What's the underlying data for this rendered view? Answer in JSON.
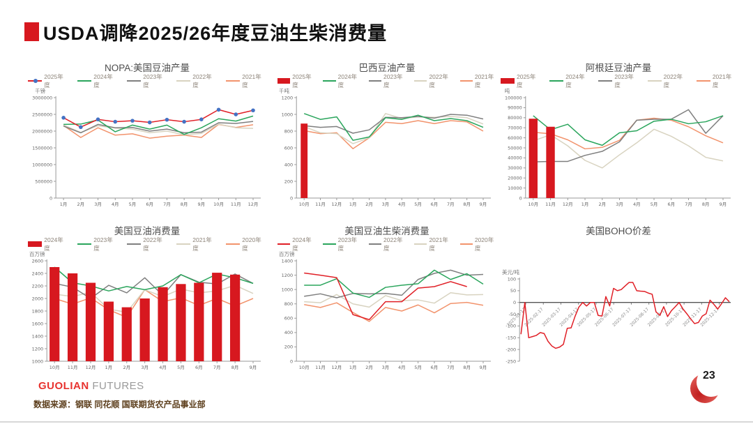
{
  "header": {
    "title": "USDA调降2025/26年度豆油生柴消费量",
    "accent_color": "#d7181f"
  },
  "footer": {
    "logo_primary": "GUOLIAN",
    "logo_secondary": "FUTURES",
    "source_note": "数据来源：钢联 同花顺 国联期货农产品事业部",
    "page_number": "23"
  },
  "palette": {
    "bar_red": "#d7181f",
    "line_red": "#e01f26",
    "green": "#2aa55c",
    "dark_gray": "#7f7f7f",
    "beige": "#d8d3c0",
    "orange": "#f2936c",
    "blue_marker": "#4472c4"
  },
  "chart_data": [
    {
      "id": "nopa-us-soybean-oil-production",
      "type": "line",
      "title": "NOPA:美国豆油产量",
      "unit": "千镑",
      "categories": [
        "1月",
        "2月",
        "3月",
        "4月",
        "5月",
        "6月",
        "7月",
        "8月",
        "9月",
        "10月",
        "11月",
        "12月"
      ],
      "ylim": [
        0,
        3000000
      ],
      "yticks": [
        0,
        500000,
        1000000,
        1500000,
        2000000,
        2500000,
        3000000
      ],
      "legend_position": "top",
      "grid": false,
      "series": [
        {
          "name": "2025年度",
          "style": "line",
          "color": "#e01f26",
          "marker": "circle",
          "marker_color": "#4472c4",
          "values": [
            2400000,
            2120000,
            2350000,
            2280000,
            2310000,
            2260000,
            2340000,
            2280000,
            2350000,
            2640000,
            2500000,
            2620000
          ]
        },
        {
          "name": "2024年度",
          "style": "line",
          "color": "#2aa55c",
          "values": [
            2200000,
            2210000,
            2330000,
            1980000,
            2180000,
            2060000,
            2180000,
            1900000,
            2100000,
            2370000,
            2300000,
            2450000
          ]
        },
        {
          "name": "2023年度",
          "style": "line",
          "color": "#7f7f7f",
          "values": [
            2150000,
            1950000,
            2200000,
            2100000,
            2110000,
            2000000,
            2060000,
            1950000,
            1970000,
            2250000,
            2230000,
            2290000
          ]
        },
        {
          "name": "2022年度",
          "style": "line",
          "color": "#d8d3c0",
          "values": [
            2180000,
            1960000,
            2160000,
            2090000,
            2060000,
            1950000,
            2000000,
            1890000,
            1930000,
            2210000,
            2100000,
            2080000
          ]
        },
        {
          "name": "2021年度",
          "style": "line",
          "color": "#f2936c",
          "values": [
            2170000,
            1810000,
            2100000,
            1880000,
            1920000,
            1790000,
            1850000,
            1880000,
            1810000,
            2200000,
            2110000,
            2190000
          ]
        }
      ]
    },
    {
      "id": "brazil-soybean-oil-production",
      "type": "bar",
      "title": "巴西豆油产量",
      "unit": "千吨",
      "categories": [
        "10月",
        "11月",
        "12月",
        "1月",
        "2月",
        "3月",
        "4月",
        "5月",
        "6月",
        "7月",
        "8月",
        "9月"
      ],
      "ylim": [
        0,
        1200
      ],
      "yticks": [
        0,
        200,
        400,
        600,
        800,
        1000,
        1200
      ],
      "bar_frac": 0.42,
      "legend_position": "top",
      "grid": false,
      "series": [
        {
          "name": "2025年度",
          "style": "bar",
          "color": "#d7181f",
          "values": [
            890
          ]
        },
        {
          "name": "2024年度",
          "style": "line",
          "color": "#2aa55c",
          "values": [
            1010,
            940,
            970,
            690,
            730,
            960,
            940,
            990,
            925,
            950,
            925,
            845
          ]
        },
        {
          "name": "2023年度",
          "style": "line",
          "color": "#7f7f7f",
          "values": [
            865,
            845,
            855,
            775,
            815,
            965,
            960,
            975,
            955,
            1000,
            990,
            945
          ]
        },
        {
          "name": "2022年度",
          "style": "line",
          "color": "#d8d3c0",
          "values": [
            855,
            780,
            770,
            650,
            720,
            1010,
            950,
            970,
            965,
            975,
            960,
            885
          ]
        },
        {
          "name": "2021年度",
          "style": "line",
          "color": "#f2936c",
          "values": [
            805,
            770,
            780,
            590,
            720,
            905,
            890,
            925,
            890,
            925,
            910,
            800
          ]
        }
      ]
    },
    {
      "id": "argentina-soybean-oil-production",
      "type": "bar",
      "title": "阿根廷豆油产量",
      "unit": "吨",
      "categories": [
        "10月",
        "11月",
        "12月",
        "1月",
        "2月",
        "3月",
        "4月",
        "5月",
        "6月",
        "7月",
        "8月",
        "9月"
      ],
      "ylim": [
        0,
        100000
      ],
      "yticks": [
        0,
        10000,
        20000,
        30000,
        40000,
        50000,
        60000,
        70000,
        80000,
        90000,
        100000
      ],
      "bar_frac": 0.5,
      "legend_position": "top",
      "grid": false,
      "series": [
        {
          "name": "2025年度",
          "style": "bar",
          "color": "#d7181f",
          "values": [
            79000,
            71000
          ]
        },
        {
          "name": "2024年度",
          "style": "line",
          "color": "#2aa55c",
          "values": [
            82000,
            68000,
            73500,
            58000,
            52500,
            65000,
            67000,
            76500,
            78500,
            74000,
            76000,
            82000
          ]
        },
        {
          "name": "2023年度",
          "style": "line",
          "color": "#7f7f7f",
          "values": [
            36000,
            36500,
            36500,
            42500,
            46500,
            56000,
            77500,
            78500,
            78500,
            88000,
            64500,
            82000
          ]
        },
        {
          "name": "2022年度",
          "style": "line",
          "color": "#d8d3c0",
          "values": [
            57000,
            63000,
            52000,
            37500,
            30000,
            43000,
            55000,
            68500,
            61500,
            52000,
            40500,
            37000
          ]
        },
        {
          "name": "2021年度",
          "style": "line",
          "color": "#f2936c",
          "values": [
            65500,
            64000,
            58000,
            49000,
            50500,
            57500,
            77500,
            79500,
            77500,
            71000,
            62000,
            55000
          ]
        }
      ]
    },
    {
      "id": "us-soybean-oil-consumption",
      "type": "bar",
      "title": "美国豆油消费量",
      "unit": "百万镑",
      "categories": [
        "10月",
        "11月",
        "12月",
        "1月",
        "2月",
        "3月",
        "4月",
        "5月",
        "6月",
        "7月",
        "8月",
        "9月"
      ],
      "ylim": [
        1000,
        2600
      ],
      "yticks": [
        1000,
        1200,
        1400,
        1600,
        1800,
        2000,
        2200,
        2400,
        2600
      ],
      "bar_frac": 0.55,
      "legend_position": "top",
      "grid": false,
      "series": [
        {
          "name": "2024年度",
          "style": "bar",
          "color": "#d7181f",
          "values": [
            2500,
            2400,
            2250,
            1950,
            1860,
            2000,
            2180,
            2230,
            2250,
            2410,
            2380
          ]
        },
        {
          "name": "2023年度",
          "style": "line",
          "color": "#2aa55c",
          "values": [
            2500,
            2250,
            2200,
            2120,
            2190,
            2140,
            2200,
            2380,
            2250,
            2390,
            2330,
            2240
          ]
        },
        {
          "name": "2022年度",
          "style": "line",
          "color": "#7f7f7f",
          "values": [
            2240,
            2180,
            2000,
            2210,
            2090,
            2330,
            2050,
            2380,
            2260,
            2230,
            2390,
            2240
          ]
        },
        {
          "name": "2021年度",
          "style": "line",
          "color": "#d8d3c0",
          "values": [
            2070,
            2030,
            2100,
            1830,
            1780,
            2140,
            2030,
            2150,
            2090,
            2120,
            2210,
            2080
          ]
        },
        {
          "name": "2020年度",
          "style": "line",
          "color": "#f2936c",
          "values": [
            2000,
            1910,
            2010,
            1820,
            1700,
            2140,
            1950,
            2010,
            1890,
            2000,
            1880,
            2000
          ]
        }
      ]
    },
    {
      "id": "us-soybean-oil-biodiesel-consumption",
      "type": "line",
      "title": "美国豆油生柴消费量",
      "unit": "百万镑",
      "categories": [
        "10月",
        "11月",
        "12月",
        "1月",
        "2月",
        "3月",
        "4月",
        "5月",
        "6月",
        "7月",
        "8月",
        "9月"
      ],
      "ylim": [
        0,
        1400
      ],
      "yticks": [
        0,
        200,
        400,
        600,
        800,
        1000,
        1200,
        1400
      ],
      "legend_position": "top",
      "grid": false,
      "series": [
        {
          "name": "2024年度",
          "style": "line",
          "color": "#e01f26",
          "values": [
            1230,
            1200,
            1165,
            650,
            580,
            830,
            830,
            1020,
            1040,
            1110,
            1040,
            null
          ]
        },
        {
          "name": "2023年度",
          "style": "line",
          "color": "#2aa55c",
          "values": [
            1060,
            1060,
            1150,
            950,
            890,
            1030,
            1060,
            1080,
            1270,
            1140,
            1220,
            1075
          ]
        },
        {
          "name": "2022年度",
          "style": "line",
          "color": "#7f7f7f",
          "values": [
            905,
            940,
            885,
            945,
            940,
            945,
            920,
            1140,
            1225,
            1270,
            1200,
            1210
          ]
        },
        {
          "name": "2021年度",
          "style": "line",
          "color": "#d8d3c0",
          "values": [
            830,
            815,
            930,
            800,
            755,
            915,
            845,
            855,
            810,
            955,
            925,
            930
          ]
        },
        {
          "name": "2020年度",
          "style": "line",
          "color": "#f2936c",
          "values": [
            790,
            750,
            815,
            680,
            555,
            750,
            700,
            785,
            675,
            805,
            820,
            780
          ]
        }
      ]
    },
    {
      "id": "us-boho-spread",
      "type": "line",
      "title": "美国BOHO价差",
      "unit": "美元/吨",
      "ylim": [
        -250,
        100
      ],
      "yticks": [
        -250,
        -200,
        -150,
        -100,
        -50,
        0,
        50,
        100
      ],
      "x_axis_at_zero": true,
      "show_legend": false,
      "plot_top": 42,
      "grid": false,
      "x_tick_labels": [
        "2025-01-17",
        "2025-02-17",
        "2025-03-17",
        "2025-04-17",
        "2025-05-17",
        "2025-06-17",
        "2025-07-17",
        "2025-08-17",
        "2025-09-17",
        "2025-10-17",
        "2025-11-17",
        "2025-12-17"
      ],
      "series": [
        {
          "style": "line",
          "color": "#e01f26",
          "values": [
            -135,
            0,
            -150,
            -145,
            -140,
            -128,
            -132,
            -165,
            -185,
            -195,
            -190,
            -178,
            -110,
            -108,
            -60,
            -20,
            0,
            -15,
            0,
            0,
            -55,
            -58,
            25,
            -15,
            60,
            50,
            55,
            70,
            85,
            85,
            50,
            48,
            47,
            40,
            35,
            -40,
            -55,
            -18,
            -60,
            -35,
            -18,
            0,
            -28,
            -48,
            -70,
            -90,
            -85,
            -58,
            -48,
            10,
            -8,
            -28,
            -5,
            20,
            3
          ]
        }
      ]
    }
  ]
}
